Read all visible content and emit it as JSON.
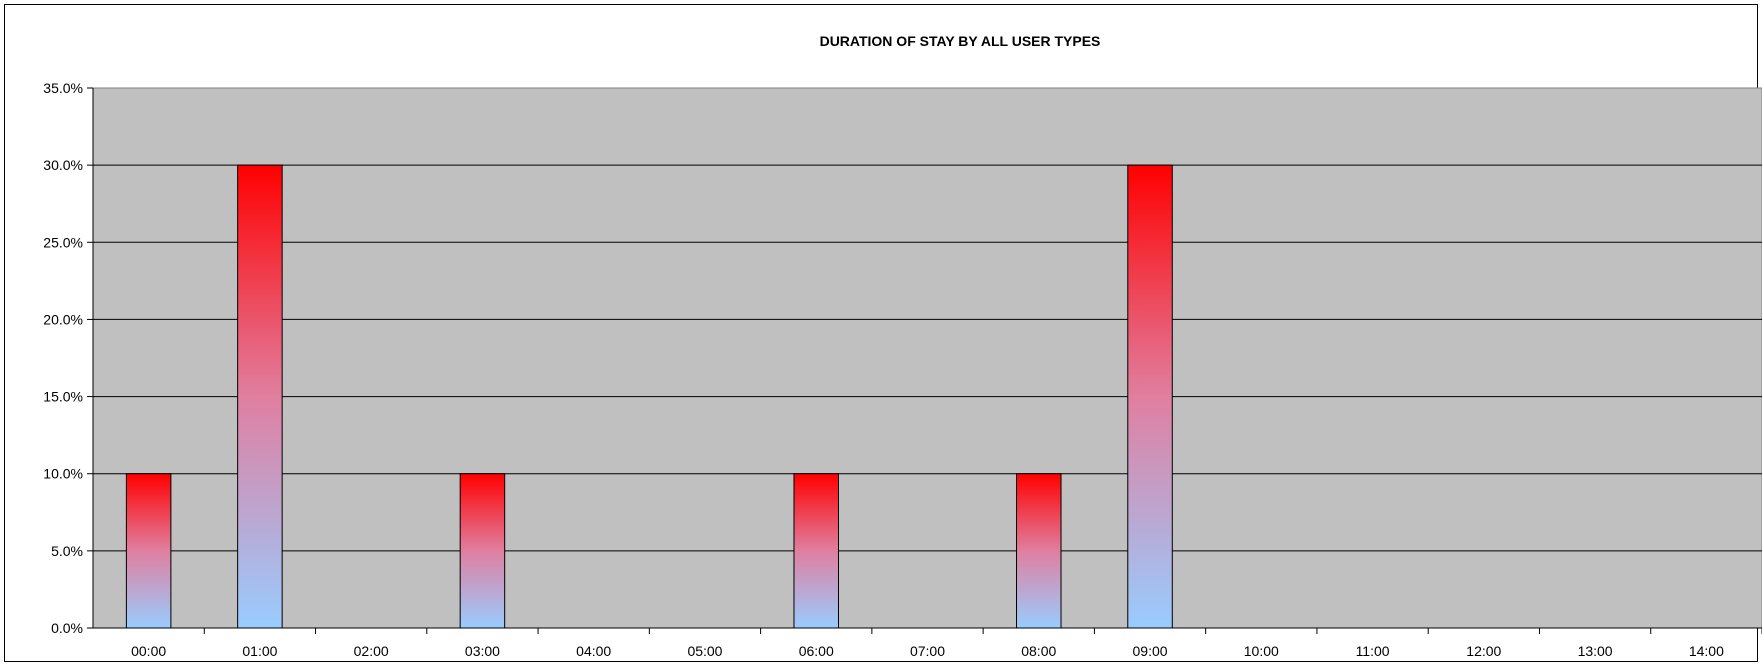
{
  "chart_data": {
    "type": "bar",
    "title": "DURATION OF STAY BY ALL USER TYPES",
    "xlabel": "",
    "ylabel": "",
    "categories": [
      "00:00",
      "01:00",
      "02:00",
      "03:00",
      "04:00",
      "05:00",
      "06:00",
      "07:00",
      "08:00",
      "09:00",
      "10:00",
      "11:00",
      "12:00",
      "13:00",
      "14:00"
    ],
    "values": [
      10,
      30,
      0,
      10,
      0,
      0,
      10,
      0,
      10,
      30,
      0,
      0,
      0,
      0,
      0
    ],
    "ylim": [
      0,
      35
    ],
    "yticks": [
      "0.0%",
      "5.0%",
      "10.0%",
      "15.0%",
      "20.0%",
      "25.0%",
      "30.0%",
      "35.0%"
    ],
    "grid": true,
    "legend": "none",
    "colors": {
      "plot_background": "#c0c0c0",
      "bar_top": "#ff0000",
      "bar_mid": "#e07fa0",
      "bar_bottom": "#99ccff",
      "gridline": "#000000"
    }
  }
}
